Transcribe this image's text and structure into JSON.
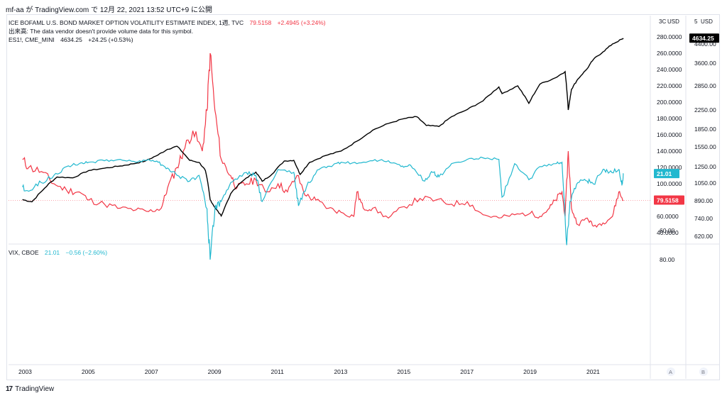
{
  "header": "mf-aa が TradingView.com で 12月 22, 2021 13:52 UTC+9 に公開",
  "footer_brand": "TradingView",
  "legend": {
    "move_title": "ICE BOFAML U.S. BOND MARKET OPTION VOLATILITY ESTIMATE INDEX, 1週, TVC",
    "move_value": "79.5158",
    "move_change": "+2.4945 (+3.24%)",
    "volume_note": "出来高: The data vendor doesn't provide volume data for this symbol.",
    "es_title": "ES1!, CME_MINI",
    "es_value": "4634.25",
    "es_change": "+24.25 (+0.53%)",
    "vix_title": "VIX, CBOE",
    "vix_value": "21.01",
    "vix_change": "−0.56 (−2.60%)"
  },
  "scale_labels": {
    "usd_a": "USD",
    "usd_b": "USD",
    "top_a": "3C",
    "top_b": "5",
    "axis_a": "A",
    "axis_b": "B"
  },
  "colors": {
    "move": "#f23645",
    "es": "#000000",
    "vix": "#22b8cf",
    "text": "#131722",
    "grid": "#e0e3eb"
  },
  "chart_data": [
    {
      "type": "line",
      "panel": "top",
      "series": [
        {
          "name": "ES1!, CME_MINI",
          "scale": "right_outer",
          "last_value": 4634.25,
          "x": [
            2002.9,
            2003.2,
            2003.6,
            2004.0,
            2004.5,
            2005.0,
            2005.5,
            2006.0,
            2006.4,
            2006.8,
            2007.2,
            2007.5,
            2007.8,
            2008.2,
            2008.5,
            2008.7,
            2008.85,
            2009.0,
            2009.2,
            2009.5,
            2010.0,
            2010.3,
            2010.5,
            2010.8,
            2011.2,
            2011.5,
            2011.7,
            2012.0,
            2012.5,
            2013.0,
            2013.5,
            2014.0,
            2014.5,
            2015.0,
            2015.4,
            2015.7,
            2016.1,
            2016.5,
            2017.0,
            2017.5,
            2018.0,
            2018.1,
            2018.6,
            2018.95,
            2019.3,
            2019.8,
            2020.1,
            2020.2,
            2020.3,
            2020.5,
            2020.8,
            2021.0,
            2021.3,
            2021.6,
            2021.95
          ],
          "values": [
            900,
            880,
            1000,
            1120,
            1110,
            1200,
            1230,
            1260,
            1290,
            1330,
            1420,
            1510,
            1560,
            1340,
            1310,
            1200,
            900,
            830,
            760,
            950,
            1110,
            1180,
            1070,
            1150,
            1330,
            1340,
            1150,
            1310,
            1410,
            1480,
            1640,
            1830,
            1960,
            2060,
            2100,
            1920,
            1900,
            2100,
            2260,
            2460,
            2820,
            2640,
            2850,
            2400,
            2900,
            3100,
            3300,
            2250,
            2750,
            3050,
            3400,
            3750,
            4050,
            4400,
            4634.25
          ]
        },
        {
          "name": "ICE BOFAML U.S. BOND MARKET OPTION VOLATILITY ESTIMATE INDEX, 1週, TVC",
          "scale": "right_inner",
          "last_value": 79.5158,
          "x": [
            2002.9,
            2003.1,
            2003.5,
            2003.9,
            2004.3,
            2004.7,
            2005.0,
            2005.5,
            2006.0,
            2006.5,
            2006.9,
            2007.3,
            2007.5,
            2007.8,
            2008.0,
            2008.3,
            2008.6,
            2008.75,
            2008.85,
            2009.0,
            2009.2,
            2009.5,
            2009.7,
            2010.0,
            2010.3,
            2010.6,
            2011.0,
            2011.3,
            2011.6,
            2011.9,
            2012.2,
            2012.6,
            2013.0,
            2013.4,
            2013.5,
            2013.7,
            2014.0,
            2014.5,
            2015.0,
            2015.5,
            2016.0,
            2016.5,
            2017.0,
            2017.5,
            2018.0,
            2018.5,
            2019.0,
            2019.3,
            2019.6,
            2019.8,
            2020.0,
            2020.1,
            2020.2,
            2020.3,
            2020.5,
            2020.8,
            2021.0,
            2021.3,
            2021.6,
            2021.8,
            2021.95
          ],
          "values": [
            130,
            120,
            115,
            100,
            92,
            90,
            80,
            75,
            70,
            68,
            66,
            70,
            95,
            120,
            140,
            165,
            140,
            190,
            260,
            190,
            130,
            110,
            95,
            100,
            105,
            90,
            100,
            90,
            110,
            85,
            80,
            70,
            65,
            60,
            90,
            70,
            70,
            58,
            72,
            82,
            80,
            75,
            78,
            62,
            58,
            62,
            64,
            60,
            70,
            80,
            90,
            60,
            140,
            70,
            50,
            58,
            48,
            52,
            60,
            90,
            79.5158
          ]
        },
        {
          "name": "VIX, CBOE",
          "panel": "bottom",
          "last_value": 21.01,
          "x": [
            2002.9,
            2003.1,
            2003.5,
            2003.9,
            2004.3,
            2004.7,
            2005.0,
            2005.5,
            2006.0,
            2006.5,
            2006.9,
            2007.2,
            2007.5,
            2007.8,
            2008.2,
            2008.5,
            2008.75,
            2008.85,
            2009.0,
            2009.2,
            2009.5,
            2010.0,
            2010.3,
            2010.5,
            2011.0,
            2011.5,
            2011.65,
            2011.9,
            2012.3,
            2012.7,
            2013.0,
            2013.5,
            2014.0,
            2014.5,
            2014.9,
            2015.2,
            2015.65,
            2015.9,
            2016.1,
            2016.5,
            2017.0,
            2017.5,
            2018.0,
            2018.1,
            2018.5,
            2018.95,
            2019.3,
            2019.8,
            2020.0,
            2020.15,
            2020.25,
            2020.5,
            2020.8,
            2021.0,
            2021.3,
            2021.5,
            2021.8,
            2021.9,
            2021.95
          ],
          "values": [
            30,
            33,
            27,
            22,
            16,
            14,
            13,
            12,
            11,
            13,
            11,
            13,
            17,
            22,
            26,
            22,
            45,
            80,
            45,
            40,
            27,
            20,
            22,
            40,
            18,
            20,
            43,
            30,
            18,
            16,
            13,
            14,
            12,
            12,
            16,
            15,
            26,
            20,
            23,
            14,
            11,
            10,
            11,
            37,
            14,
            25,
            16,
            14,
            13,
            70,
            40,
            27,
            26,
            28,
            18,
            20,
            18,
            29,
            21.01
          ]
        }
      ],
      "x_ticks": [
        "2003",
        "2005",
        "2007",
        "2009",
        "2011",
        "2013",
        "2015",
        "2017",
        "2019",
        "2021"
      ],
      "y_inner_ticks": [
        "280.0000",
        "260.0000",
        "240.0000",
        "220.0000",
        "200.0000",
        "180.0000",
        "160.0000",
        "140.0000",
        "120.0000",
        "100.0000",
        "60.0000",
        "40.0000"
      ],
      "y_outer_ticks": [
        "4400.00",
        "3600.00",
        "2850.00",
        "2250.00",
        "1850.00",
        "1550.00",
        "1250.00",
        "1050.00",
        "890.00",
        "740.00",
        "620.00"
      ],
      "vix_ticks": [
        "80.00",
        "60.00",
        "40.00"
      ],
      "vix_ylim": [
        8,
        82
      ]
    }
  ]
}
